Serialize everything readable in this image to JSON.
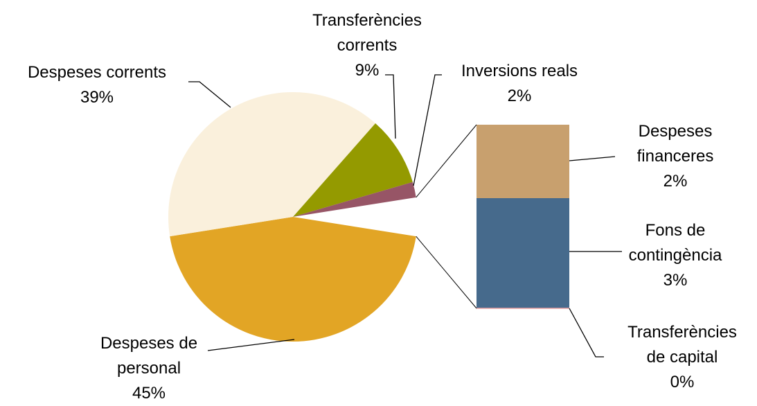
{
  "chart_data": {
    "type": "pie",
    "categories": [
      "Despeses de personal",
      "Despeses corrents",
      "Transferències corrents",
      "Inversions reals"
    ],
    "values": [
      45,
      39,
      9,
      2
    ],
    "value_labels": [
      "45%",
      "39%",
      "9%",
      "2%"
    ],
    "colors": [
      "#e2a525",
      "#faf0dc",
      "#949a00",
      "#975566"
    ],
    "bar_of_pie": {
      "categories": [
        "Despeses financeres",
        "Fons de contingència",
        "Transferències de capital"
      ],
      "values": [
        2,
        3,
        0
      ],
      "value_labels": [
        "2%",
        "3%",
        "0%"
      ],
      "colors": [
        "#c8a06e",
        "#466a8c",
        "#e8a0a0"
      ]
    }
  }
}
